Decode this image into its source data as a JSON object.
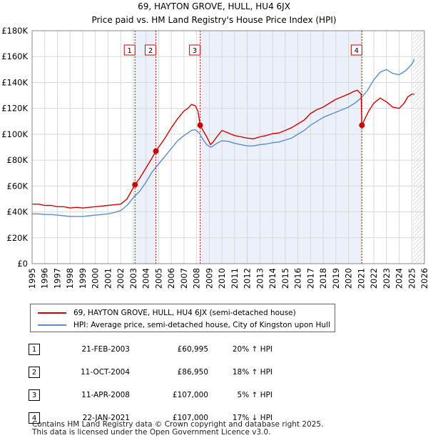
{
  "chart_data": {
    "type": "line",
    "title": "69, HAYTON GROVE, HULL, HU4 6JX",
    "subtitle": "Price paid vs. HM Land Registry's House Price Index (HPI)",
    "xlabel": "",
    "ylabel": "",
    "xlim": [
      1995,
      2026
    ],
    "ylim": [
      0,
      180000
    ],
    "x_ticks": [
      1995,
      1996,
      1997,
      1998,
      1999,
      2000,
      2001,
      2002,
      2003,
      2004,
      2005,
      2006,
      2007,
      2008,
      2009,
      2010,
      2011,
      2012,
      2013,
      2014,
      2015,
      2016,
      2017,
      2018,
      2019,
      2020,
      2021,
      2022,
      2023,
      2024,
      2025,
      2026
    ],
    "y_ticks": [
      0,
      20000,
      40000,
      60000,
      80000,
      100000,
      120000,
      140000,
      160000,
      180000
    ],
    "y_tick_labels": [
      "£0",
      "£20K",
      "£40K",
      "£60K",
      "£80K",
      "£100K",
      "£120K",
      "£140K",
      "£160K",
      "£180K"
    ],
    "series": [
      {
        "name": "69, HAYTON GROVE, HULL, HU4 6JX (semi-detached house)",
        "color": "#cc0000",
        "x": [
          1995.0,
          1995.5,
          1996.0,
          1996.5,
          1997.0,
          1997.5,
          1998.0,
          1998.5,
          1999.0,
          1999.5,
          2000.0,
          2000.5,
          2001.0,
          2001.5,
          2002.0,
          2002.5,
          2003.13,
          2003.5,
          2004.0,
          2004.5,
          2004.78,
          2005.0,
          2005.5,
          2006.0,
          2006.5,
          2007.0,
          2007.3,
          2007.6,
          2007.9,
          2008.1,
          2008.28,
          2008.5,
          2008.8,
          2009.1,
          2009.3,
          2009.6,
          2010.0,
          2010.5,
          2011.0,
          2011.5,
          2012.0,
          2012.5,
          2013.0,
          2013.5,
          2014.0,
          2014.5,
          2015.0,
          2015.5,
          2016.0,
          2016.5,
          2017.0,
          2017.5,
          2018.0,
          2018.5,
          2019.0,
          2019.5,
          2020.0,
          2020.4,
          2020.7,
          2021.0,
          2021.06,
          2021.3,
          2021.6,
          2022.0,
          2022.5,
          2023.0,
          2023.5,
          2024.0,
          2024.4,
          2024.7,
          2025.0,
          2025.2
        ],
        "values": [
          46000,
          46000,
          45000,
          45000,
          44000,
          44000,
          43000,
          43500,
          43000,
          43500,
          44000,
          44500,
          45000,
          45500,
          46000,
          50000,
          60995,
          66000,
          74000,
          82000,
          86950,
          90000,
          97000,
          105000,
          112000,
          118000,
          120000,
          123000,
          122000,
          118000,
          107000,
          103000,
          98000,
          92000,
          94000,
          98000,
          103000,
          101000,
          99000,
          98000,
          97000,
          96500,
          98000,
          99000,
          100500,
          101000,
          103000,
          105000,
          108000,
          111000,
          116000,
          119000,
          121000,
          124000,
          127000,
          129000,
          131000,
          133000,
          134000,
          131000,
          107000,
          112000,
          118000,
          124000,
          128000,
          125000,
          121000,
          120000,
          124000,
          129000,
          131000,
          131000
        ]
      },
      {
        "name": "HPI: Average price, semi-detached house, City of Kingston upon Hull",
        "color": "#5b8dc9",
        "x": [
          1995.0,
          1995.5,
          1996.0,
          1996.5,
          1997.0,
          1997.5,
          1998.0,
          1998.5,
          1999.0,
          1999.5,
          2000.0,
          2000.5,
          2001.0,
          2001.5,
          2002.0,
          2002.5,
          2003.0,
          2003.5,
          2004.0,
          2004.5,
          2005.0,
          2005.5,
          2006.0,
          2006.5,
          2007.0,
          2007.3,
          2007.6,
          2007.9,
          2008.2,
          2008.5,
          2008.8,
          2009.1,
          2009.3,
          2009.6,
          2010.0,
          2010.5,
          2011.0,
          2011.5,
          2012.0,
          2012.5,
          2013.0,
          2013.5,
          2014.0,
          2014.5,
          2015.0,
          2015.5,
          2016.0,
          2016.5,
          2017.0,
          2017.5,
          2018.0,
          2018.5,
          2019.0,
          2019.5,
          2020.0,
          2020.5,
          2021.0,
          2021.5,
          2022.0,
          2022.5,
          2023.0,
          2023.5,
          2024.0,
          2024.5,
          2025.0,
          2025.2
        ],
        "values": [
          38500,
          38500,
          38000,
          38000,
          37500,
          37000,
          36500,
          36500,
          36500,
          37000,
          37500,
          38000,
          38500,
          39500,
          41000,
          45000,
          51000,
          56000,
          63000,
          71000,
          77000,
          83000,
          89000,
          95000,
          99000,
          101000,
          103000,
          103500,
          101000,
          96000,
          92000,
          90000,
          91000,
          93000,
          95000,
          94500,
          93000,
          92000,
          91000,
          91000,
          92000,
          92500,
          93500,
          94000,
          95500,
          97000,
          100000,
          103000,
          107000,
          110000,
          113000,
          115000,
          117000,
          119000,
          121000,
          124000,
          128000,
          134000,
          142000,
          148000,
          150000,
          147000,
          146000,
          149000,
          154000,
          158000
        ]
      }
    ],
    "sales": [
      {
        "label": "1",
        "x": 2003.13,
        "price": 60995
      },
      {
        "label": "2",
        "x": 2004.78,
        "price": 86950
      },
      {
        "label": "3",
        "x": 2008.28,
        "price": 107000
      },
      {
        "label": "4",
        "x": 2021.06,
        "price": 107000
      }
    ],
    "shaded_ranges": [
      [
        2003.13,
        2004.78
      ],
      [
        2008.28,
        2021.06
      ]
    ],
    "forecast_start": 2025.1
  },
  "legend": {
    "line1": "69, HAYTON GROVE, HULL, HU4 6JX (semi-detached house)",
    "line2": "HPI: Average price, semi-detached house, City of Kingston upon Hull"
  },
  "table": [
    {
      "num": "1",
      "date": "21-FEB-2003",
      "price": "£60,995",
      "hpi": "20% ↑ HPI"
    },
    {
      "num": "2",
      "date": "11-OCT-2004",
      "price": "£86,950",
      "hpi": "18% ↑ HPI"
    },
    {
      "num": "3",
      "date": "11-APR-2008",
      "price": "£107,000",
      "hpi": "5% ↑ HPI"
    },
    {
      "num": "4",
      "date": "22-JAN-2021",
      "price": "£107,000",
      "hpi": "17% ↓ HPI"
    }
  ],
  "footer": {
    "line1": "Contains HM Land Registry data © Crown copyright and database right 2025.",
    "line2": "This data is licensed under the Open Government Licence v3.0."
  }
}
